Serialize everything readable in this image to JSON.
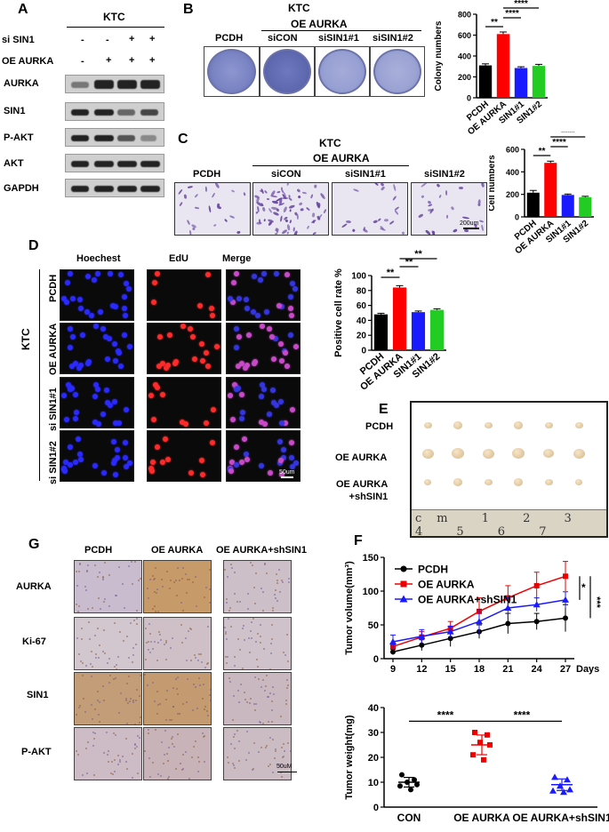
{
  "panelA": {
    "letter": "A",
    "header": "KTC",
    "rows": [
      {
        "label": "si SIN1",
        "marks": [
          "-",
          "-",
          "+",
          "+"
        ]
      },
      {
        "label": "OE AURKA",
        "marks": [
          "-",
          "+",
          "+",
          "+"
        ]
      }
    ],
    "blots": [
      "AURKA",
      "SIN1",
      "P-AKT",
      "AKT",
      "GAPDH"
    ]
  },
  "panelB": {
    "letter": "B",
    "header": "KTC",
    "group": "OE AURKA",
    "dishes": [
      "PCDH",
      "siCON",
      "siSIN1#1",
      "siSIN1#2"
    ]
  },
  "panelC": {
    "letter": "C",
    "header": "KTC",
    "group": "OE AURKA",
    "fields": [
      "PCDH",
      "siCON",
      "siSIN1#1",
      "siSIN1#2"
    ],
    "scale": "200um"
  },
  "panelD": {
    "letter": "D",
    "side": "KTC",
    "columns": [
      "Hoechest",
      "EdU",
      "Merge"
    ],
    "rows": [
      "PCDH",
      "OE AURKA",
      "si SIN1#1",
      "si SIN1#2"
    ],
    "scale": "50um"
  },
  "panelE": {
    "letter": "E",
    "rows": [
      "PCDH",
      "OE AURKA",
      "OE AURKA\n+shSIN1"
    ],
    "ruler": "cm 1 2 3 4 5 6 7"
  },
  "panelF": {
    "letter": "F"
  },
  "panelG": {
    "letter": "G",
    "columns": [
      "PCDH",
      "OE AURKA",
      "OE AURKA+shSIN1"
    ],
    "rows": [
      "AURKA",
      "Ki-67",
      "SIN1",
      "P-AKT"
    ],
    "scale": "50uM"
  },
  "chart_data": [
    {
      "type": "bar",
      "panel": "B",
      "categories": [
        "PCDH",
        "OE AURKA",
        "SIN1#1",
        "SIN1#2"
      ],
      "values": [
        310,
        610,
        285,
        305
      ],
      "errors": [
        15,
        20,
        12,
        15
      ],
      "colors": [
        "#000000",
        "#ff0000",
        "#1a1aff",
        "#22cc22"
      ],
      "ylabel": "Colony numbers",
      "ylim": [
        0,
        800
      ],
      "yticks": [
        0,
        200,
        400,
        600,
        800
      ],
      "significance": [
        {
          "from": 0,
          "to": 1,
          "label": "**"
        },
        {
          "from": 1,
          "to": 2,
          "label": "****"
        },
        {
          "from": 1,
          "to": 3,
          "label": "****"
        }
      ]
    },
    {
      "type": "bar",
      "panel": "C",
      "categories": [
        "PCDH",
        "OE AURKA",
        "SIN1#1",
        "SIN1#2"
      ],
      "values": [
        215,
        480,
        195,
        175
      ],
      "errors": [
        20,
        15,
        8,
        8
      ],
      "colors": [
        "#000000",
        "#ff0000",
        "#1a1aff",
        "#22cc22"
      ],
      "ylabel": "Cell numbers",
      "ylim": [
        0,
        600
      ],
      "yticks": [
        0,
        200,
        400,
        600
      ],
      "significance": [
        {
          "from": 0,
          "to": 1,
          "label": "**"
        },
        {
          "from": 1,
          "to": 2,
          "label": "****"
        },
        {
          "from": 1,
          "to": 3,
          "label": "****"
        }
      ]
    },
    {
      "type": "bar",
      "panel": "D",
      "categories": [
        "PCDH",
        "OE AURKA",
        "SIN1#1",
        "SIN1#2"
      ],
      "values": [
        48,
        84,
        51,
        54
      ],
      "errors": [
        1.5,
        2.5,
        1.5,
        1.5
      ],
      "colors": [
        "#000000",
        "#ff0000",
        "#1a1aff",
        "#22cc22"
      ],
      "ylabel": "Positive cell rate %",
      "ylim": [
        0,
        100
      ],
      "yticks": [
        0,
        20,
        40,
        60,
        80,
        100
      ],
      "significance": [
        {
          "from": 0,
          "to": 1,
          "label": "**"
        },
        {
          "from": 1,
          "to": 2,
          "label": "**"
        },
        {
          "from": 1,
          "to": 3,
          "label": "**"
        }
      ]
    },
    {
      "type": "line",
      "panel": "F",
      "x": [
        9,
        12,
        15,
        18,
        21,
        24,
        27
      ],
      "xlabel": "Days",
      "ylabel": "Tumor volume(mm³)",
      "ylim": [
        0,
        150
      ],
      "yticks": [
        0,
        50,
        100,
        150
      ],
      "series": [
        {
          "name": "PCDH",
          "color": "#000000",
          "marker": "circle",
          "values": [
            10,
            20,
            30,
            40,
            52,
            55,
            60
          ],
          "errors": [
            4,
            8,
            12,
            10,
            15,
            12,
            20
          ]
        },
        {
          "name": "OE AURKA",
          "color": "#ee0000",
          "marker": "square",
          "values": [
            18,
            32,
            45,
            70,
            90,
            108,
            122
          ],
          "errors": [
            5,
            8,
            10,
            20,
            18,
            20,
            22
          ]
        },
        {
          "name": "OE AURKA+shSIN1",
          "color": "#1a1aff",
          "marker": "triangle",
          "values": [
            25,
            33,
            40,
            55,
            75,
            80,
            87
          ],
          "errors": [
            10,
            10,
            8,
            18,
            15,
            10,
            12
          ]
        }
      ],
      "significance": [
        {
          "label": "*"
        },
        {
          "label": "***"
        }
      ]
    },
    {
      "type": "scatter",
      "panel": "F",
      "categories": [
        "CON",
        "OE AURKA",
        "OE AURKA+shSIN1"
      ],
      "ylabel": "Tumor weight(mg)",
      "ylim": [
        0,
        40
      ],
      "yticks": [
        0,
        10,
        20,
        30,
        40
      ],
      "series": [
        {
          "name": "CON",
          "color": "#000000",
          "marker": "circle",
          "values": [
            13,
            11,
            10,
            9,
            8.5,
            7
          ],
          "mean": 10
        },
        {
          "name": "OE AURKA",
          "color": "#ee0000",
          "marker": "square",
          "values": [
            30,
            29,
            26,
            25,
            21,
            19
          ],
          "mean": 25
        },
        {
          "name": "OE AURKA+shSIN1",
          "color": "#1a1aff",
          "marker": "triangle",
          "values": [
            12,
            11,
            8.5,
            7,
            6.5,
            6
          ],
          "mean": 9
        }
      ],
      "significance": [
        {
          "from": 0,
          "to": 1,
          "label": "****"
        },
        {
          "from": 1,
          "to": 2,
          "label": "****"
        }
      ]
    }
  ]
}
